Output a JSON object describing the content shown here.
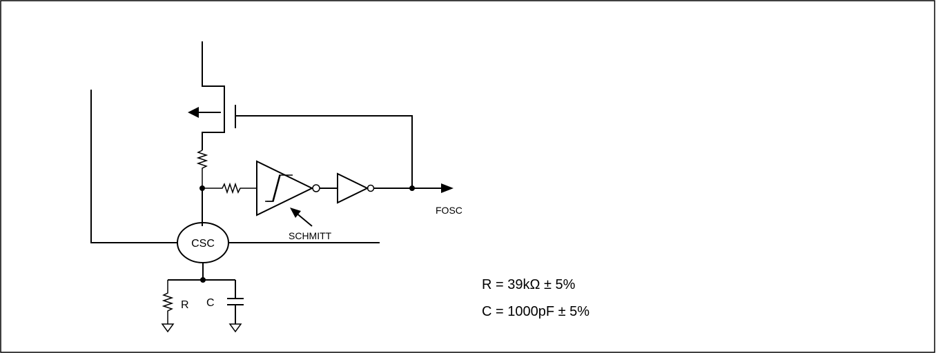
{
  "labels": {
    "csc": "CSC",
    "schmitt": "SCHMITT",
    "fosc": "FOSC",
    "r": "R",
    "c": "C"
  },
  "values": {
    "r_spec": "R = 39kΩ ± 5%",
    "c_spec": "C = 1000pF ± 5%"
  }
}
